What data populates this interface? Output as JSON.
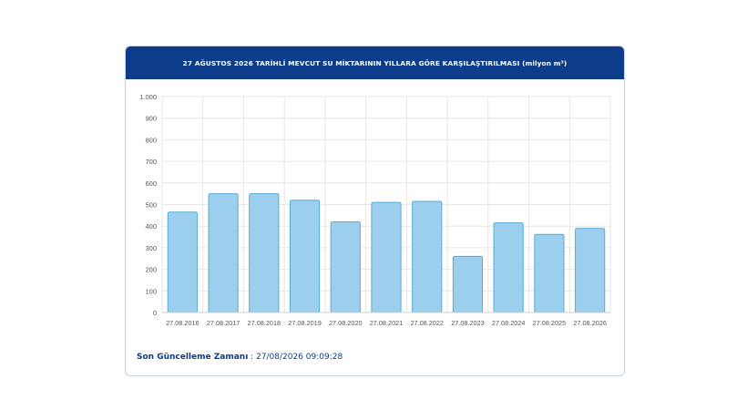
{
  "card": {
    "title": "27 AĞUSTOS 2026 TARİHLİ MEVCUT SU MİKTARININ YILLARA GÖRE KARŞILAŞTIRILMASI (milyon m³)",
    "update_label": "Son Güncelleme Zamanı",
    "update_value": " : 27/08/2026 09:09:28"
  },
  "colors": {
    "header": "#0c3c8a",
    "bar_fill": "#9ccfee",
    "bar_stroke": "#5aaad6",
    "grid": "#e6e6e6",
    "text": "#555555"
  },
  "chart_data": {
    "type": "bar",
    "title": "27 AĞUSTOS 2026 TARİHLİ MEVCUT SU MİKTARININ YILLARA GÖRE KARŞILAŞTIRILMASI (milyon m³)",
    "categories": [
      "27.08.2016",
      "27.08.2017",
      "27.08.2018",
      "27.08.2019",
      "27.08.2020",
      "27.08.2021",
      "27.08.2022",
      "27.08.2023",
      "27.08.2024",
      "27.08.2025",
      "27.08.2026"
    ],
    "values": [
      465,
      550,
      550,
      520,
      420,
      510,
      515,
      260,
      415,
      362,
      390
    ],
    "ylim": [
      0,
      1000
    ],
    "yticks": [
      0,
      100,
      200,
      300,
      400,
      500,
      600,
      700,
      800,
      900,
      1000
    ],
    "ytick_labels": [
      "0",
      "100",
      "200",
      "300",
      "400",
      "500",
      "600",
      "700",
      "800",
      "900",
      "1.000"
    ],
    "grid": true,
    "xlabel": "",
    "ylabel": ""
  }
}
